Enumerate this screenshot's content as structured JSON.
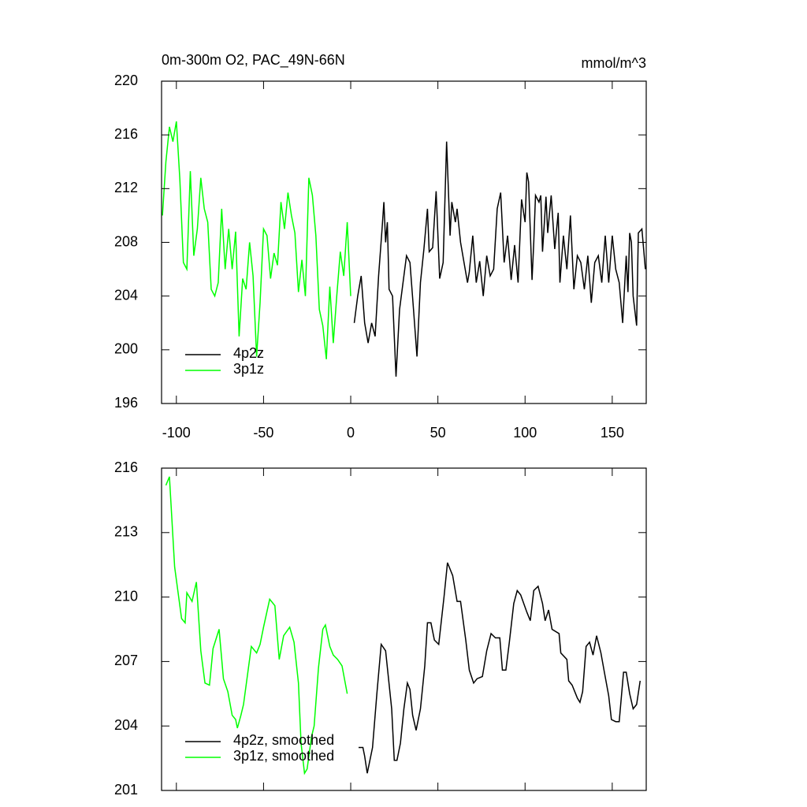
{
  "chart_data": [
    {
      "type": "line",
      "title": "0m-300m O2, PAC_49N-66N",
      "units": "mmol/m^3",
      "xlim": [
        -108.5,
        169.5
      ],
      "ylim": [
        196,
        220
      ],
      "xticks": [
        -100,
        -50,
        0,
        50,
        100,
        150
      ],
      "yticks": [
        196,
        200,
        204,
        208,
        212,
        216,
        220
      ],
      "legend": "lower left",
      "series": [
        {
          "name": "4p2z",
          "color": "#000000",
          "x": [
            2,
            4,
            6,
            8,
            10,
            12,
            14,
            16,
            18,
            19,
            20,
            21,
            22,
            24,
            26,
            28,
            30,
            32,
            34,
            36,
            38,
            40,
            42,
            44,
            45,
            47,
            49,
            51,
            53,
            55,
            57,
            58,
            60,
            61,
            63,
            65,
            67,
            68,
            70,
            72,
            74,
            76,
            78,
            80,
            82,
            84,
            86,
            88,
            90,
            92,
            94,
            96,
            98,
            100,
            101,
            102,
            104,
            105,
            106,
            108,
            109,
            110,
            112,
            113,
            115,
            117,
            119,
            120,
            122,
            124,
            126,
            128,
            130,
            132,
            134,
            136,
            138,
            140,
            142,
            144,
            146,
            148,
            150,
            152,
            154,
            156,
            158,
            159,
            160,
            161,
            162,
            164,
            165,
            167,
            169
          ],
          "values": [
            202,
            204,
            205.5,
            202,
            200.5,
            202,
            201,
            205.5,
            209,
            211,
            208,
            209.5,
            204.5,
            204,
            198,
            203,
            205,
            207,
            206.5,
            203,
            199.5,
            205,
            207.5,
            210.5,
            207.3,
            207.6,
            211.8,
            205.3,
            206.5,
            215.5,
            208.5,
            211,
            209.5,
            210.5,
            208,
            206.5,
            205,
            205.8,
            208.5,
            205,
            206.6,
            204,
            207,
            205.5,
            206,
            210.5,
            211.7,
            206.5,
            208.5,
            205.2,
            207.8,
            205,
            211.2,
            209.5,
            213.2,
            212.5,
            205.2,
            208,
            211.5,
            211,
            211.5,
            207.3,
            211.4,
            208.7,
            211.5,
            207.5,
            210.2,
            205,
            208.5,
            206,
            210,
            204.5,
            207,
            206.5,
            204.5,
            207,
            203.5,
            206.5,
            207,
            205,
            208.5,
            205,
            208.5,
            206,
            205,
            202,
            207,
            204.3,
            208.7,
            208,
            204,
            201.8,
            208.7,
            209,
            206
          ]
        },
        {
          "name": "3p1z",
          "color": "#00ff00",
          "x": [
            -108,
            -106,
            -104,
            -102,
            -100,
            -98,
            -96,
            -94,
            -92,
            -90,
            -88,
            -86,
            -84,
            -82,
            -80,
            -78,
            -76,
            -74,
            -72,
            -70,
            -68,
            -66,
            -64,
            -62,
            -60,
            -58,
            -56,
            -54,
            -52,
            -50,
            -48,
            -46,
            -44,
            -42,
            -40,
            -38,
            -36,
            -34,
            -32,
            -30,
            -28,
            -26,
            -24,
            -22,
            -20,
            -18,
            -16,
            -14,
            -12,
            -10,
            -8,
            -6,
            -4,
            -2,
            0
          ],
          "values": [
            210,
            214,
            216.6,
            215.5,
            217,
            212.7,
            206.5,
            206,
            213.3,
            207,
            209,
            212.8,
            210.5,
            209.5,
            204.5,
            204,
            205,
            210.5,
            206,
            209,
            206,
            208.8,
            201,
            205.3,
            204.5,
            208,
            205.5,
            199.5,
            203.5,
            209,
            208.5,
            205.3,
            207.2,
            206.3,
            211,
            209,
            211.7,
            210,
            208.7,
            204.3,
            206.7,
            204,
            212.8,
            211.5,
            208.5,
            203,
            201.8,
            199.3,
            204.7,
            200.5,
            204,
            207.3,
            205.5,
            209.5,
            204
          ]
        }
      ]
    },
    {
      "type": "line",
      "xlim": [
        -108.5,
        169.5
      ],
      "ylim": [
        201,
        216
      ],
      "xticks": [
        -100,
        -50,
        0,
        50,
        100,
        150
      ],
      "yticks": [
        201,
        204,
        207,
        210,
        213,
        216
      ],
      "legend": "lower left",
      "series": [
        {
          "name": "4p2z, smoothed",
          "color": "#000000",
          "x": [
            4.5,
            7,
            8,
            9.5,
            12.5,
            15,
            17.5,
            20,
            23.5,
            25,
            26.5,
            28.5,
            30.5,
            32.5,
            34,
            35.5,
            37.5,
            40,
            42.5,
            44,
            46,
            48,
            50.5,
            53.5,
            55.5,
            58.5,
            61,
            63,
            66,
            68,
            70.5,
            72.5,
            75.5,
            78,
            80.5,
            83,
            85.5,
            87,
            89,
            91,
            93.5,
            95.5,
            97.5,
            101,
            103,
            105,
            107.5,
            110,
            111.5,
            113.5,
            115.5,
            119.5,
            120.5,
            124,
            125,
            127,
            129,
            130,
            131.5,
            133,
            135,
            137,
            139,
            141,
            143.5,
            145.5,
            148,
            149.5,
            152,
            154,
            156.5,
            158,
            160,
            162,
            164,
            166
          ],
          "values": [
            203,
            203,
            202.6,
            201.8,
            203,
            205.5,
            207.8,
            207.5,
            204.8,
            202.4,
            202.4,
            203.2,
            204.8,
            206,
            205.7,
            204.5,
            203.8,
            204.8,
            206.8,
            208.8,
            208.8,
            208,
            207.8,
            210,
            211.6,
            211,
            209.8,
            209.8,
            208,
            206.6,
            206,
            206.2,
            206.3,
            207.5,
            208.3,
            208.1,
            208.1,
            206.6,
            206.6,
            207.9,
            209.7,
            210.3,
            210.1,
            209.3,
            208.9,
            210.3,
            210.5,
            209.7,
            208.9,
            209.4,
            208.5,
            208.3,
            207.4,
            207.1,
            206.1,
            205.9,
            205.5,
            205.3,
            205.1,
            205.6,
            207.7,
            207.9,
            207.3,
            208.2,
            207.4,
            206.5,
            205.4,
            204.3,
            204.2,
            204.2,
            206.5,
            206.5,
            205.5,
            204.8,
            205,
            206.1
          ]
        },
        {
          "name": "3p1z, smoothed",
          "color": "#00ff00",
          "x": [
            -106,
            -104,
            -101,
            -97,
            -95,
            -94,
            -91,
            -88.5,
            -86,
            -83.6,
            -81,
            -79,
            -75.5,
            -73,
            -70.5,
            -68,
            -66,
            -65,
            -63,
            -61.5,
            -59,
            -57,
            -54,
            -52,
            -50,
            -46.5,
            -43.5,
            -41,
            -38.5,
            -35,
            -32.5,
            -30,
            -28.5,
            -26.5,
            -25,
            -22.5,
            -21,
            -18.5,
            -16,
            -14.5,
            -12,
            -10,
            -7.5,
            -5,
            -2
          ],
          "values": [
            215.2,
            215.6,
            211.4,
            209,
            208.8,
            210.2,
            209.8,
            210.7,
            207.5,
            206,
            205.9,
            207.6,
            208.5,
            206.2,
            205.6,
            204.5,
            204.3,
            203.9,
            204.5,
            205,
            206.5,
            207.7,
            207.4,
            207.8,
            208.6,
            209.9,
            209.6,
            207.1,
            208.2,
            208.6,
            207.9,
            206,
            203.2,
            201.8,
            202,
            203.5,
            204,
            206.7,
            208.5,
            208.7,
            207.7,
            207.3,
            207.1,
            206.8,
            205.5
          ]
        }
      ]
    }
  ]
}
